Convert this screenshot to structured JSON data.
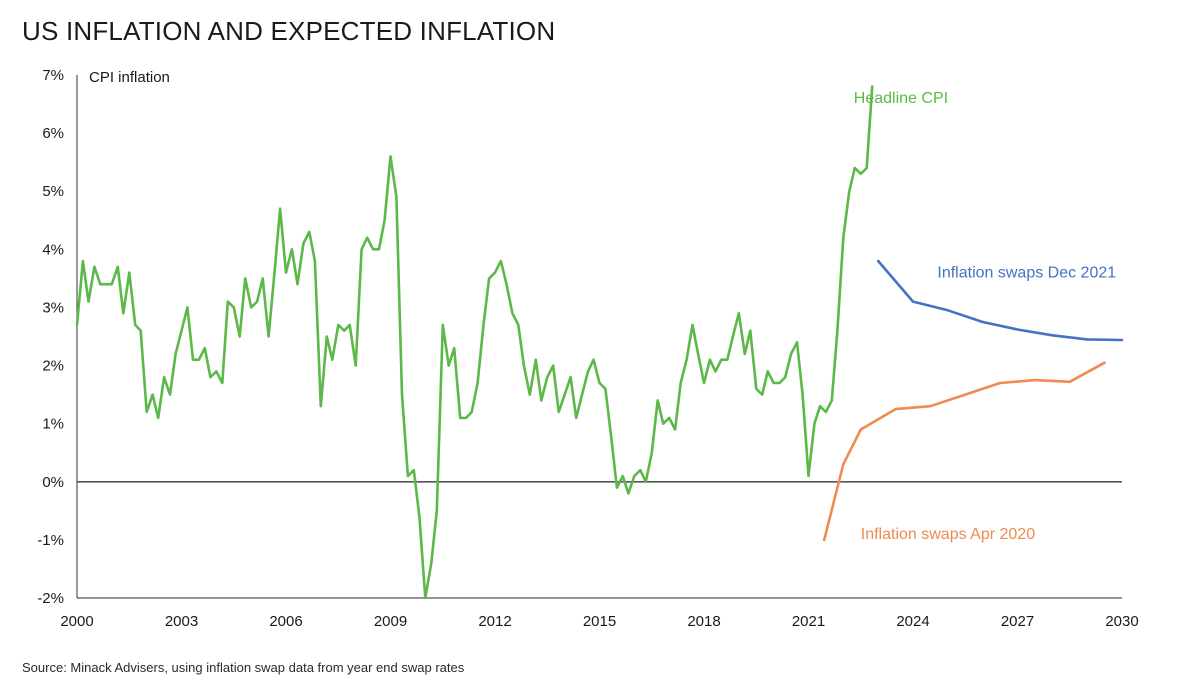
{
  "chart_data": {
    "type": "line",
    "title": "US INFLATION AND EXPECTED INFLATION",
    "ylabel": "CPI inflation",
    "xlabel": "",
    "source": "Source: Minack Advisers, using inflation swap data from year end swap rates",
    "xlim": [
      2000,
      2030
    ],
    "ylim": [
      -2,
      7
    ],
    "x_ticks": [
      2000,
      2003,
      2006,
      2009,
      2012,
      2015,
      2018,
      2021,
      2024,
      2027,
      2030
    ],
    "x_tick_labels": [
      "2000",
      "2003",
      "2006",
      "2009",
      "2012",
      "2015",
      "2018",
      "2021",
      "2024",
      "2027",
      "2030"
    ],
    "y_ticks": [
      -2,
      -1,
      0,
      1,
      2,
      3,
      4,
      5,
      6,
      7
    ],
    "y_tick_labels": [
      "-2%",
      "-1%",
      "0%",
      "1%",
      "2%",
      "3%",
      "4%",
      "5%",
      "6%",
      "7%"
    ],
    "grid": false,
    "zero_line": true,
    "series": [
      {
        "name": "Headline CPI",
        "color": "#5cb848",
        "label_at": [
          2022.3,
          6.6
        ],
        "points": [
          [
            2000.0,
            2.7
          ],
          [
            2000.17,
            3.8
          ],
          [
            2000.33,
            3.1
          ],
          [
            2000.5,
            3.7
          ],
          [
            2000.67,
            3.4
          ],
          [
            2000.83,
            3.4
          ],
          [
            2001.0,
            3.4
          ],
          [
            2001.17,
            3.7
          ],
          [
            2001.33,
            2.9
          ],
          [
            2001.5,
            3.6
          ],
          [
            2001.67,
            2.7
          ],
          [
            2001.83,
            2.6
          ],
          [
            2002.0,
            1.2
          ],
          [
            2002.17,
            1.5
          ],
          [
            2002.33,
            1.1
          ],
          [
            2002.5,
            1.8
          ],
          [
            2002.67,
            1.5
          ],
          [
            2002.83,
            2.2
          ],
          [
            2003.0,
            2.6
          ],
          [
            2003.17,
            3.0
          ],
          [
            2003.33,
            2.1
          ],
          [
            2003.5,
            2.1
          ],
          [
            2003.67,
            2.3
          ],
          [
            2003.83,
            1.8
          ],
          [
            2004.0,
            1.9
          ],
          [
            2004.17,
            1.7
          ],
          [
            2004.33,
            3.1
          ],
          [
            2004.5,
            3.0
          ],
          [
            2004.67,
            2.5
          ],
          [
            2004.83,
            3.5
          ],
          [
            2005.0,
            3.0
          ],
          [
            2005.17,
            3.1
          ],
          [
            2005.33,
            3.5
          ],
          [
            2005.5,
            2.5
          ],
          [
            2005.67,
            3.6
          ],
          [
            2005.83,
            4.7
          ],
          [
            2006.0,
            3.6
          ],
          [
            2006.17,
            4.0
          ],
          [
            2006.33,
            3.4
          ],
          [
            2006.5,
            4.1
          ],
          [
            2006.67,
            4.3
          ],
          [
            2006.83,
            3.8
          ],
          [
            2007.0,
            1.3
          ],
          [
            2007.17,
            2.5
          ],
          [
            2007.33,
            2.1
          ],
          [
            2007.5,
            2.7
          ],
          [
            2007.67,
            2.6
          ],
          [
            2007.83,
            2.7
          ],
          [
            2008.0,
            2.0
          ],
          [
            2008.17,
            4.0
          ],
          [
            2008.33,
            4.2
          ],
          [
            2008.5,
            4.0
          ],
          [
            2008.67,
            4.0
          ],
          [
            2008.83,
            4.5
          ],
          [
            2009.0,
            5.6
          ],
          [
            2009.17,
            4.9
          ],
          [
            2009.33,
            1.5
          ],
          [
            2009.5,
            0.1
          ],
          [
            2009.67,
            0.2
          ],
          [
            2009.83,
            -0.6
          ],
          [
            2010.0,
            -2.0
          ],
          [
            2010.17,
            -1.4
          ],
          [
            2010.33,
            -0.5
          ],
          [
            2010.5,
            2.7
          ],
          [
            2010.67,
            2.0
          ],
          [
            2010.83,
            2.3
          ],
          [
            2011.0,
            1.1
          ],
          [
            2011.17,
            1.1
          ],
          [
            2011.33,
            1.2
          ],
          [
            2011.5,
            1.7
          ],
          [
            2011.67,
            2.7
          ],
          [
            2011.83,
            3.5
          ],
          [
            2012.0,
            3.6
          ],
          [
            2012.17,
            3.8
          ],
          [
            2012.33,
            3.4
          ],
          [
            2012.5,
            2.9
          ],
          [
            2012.67,
            2.7
          ],
          [
            2012.83,
            2.0
          ],
          [
            2013.0,
            1.5
          ],
          [
            2013.17,
            2.1
          ],
          [
            2013.33,
            1.4
          ],
          [
            2013.5,
            1.8
          ],
          [
            2013.67,
            2.0
          ],
          [
            2013.83,
            1.2
          ],
          [
            2014.0,
            1.5
          ],
          [
            2014.17,
            1.8
          ],
          [
            2014.33,
            1.1
          ],
          [
            2014.5,
            1.5
          ],
          [
            2014.67,
            1.9
          ],
          [
            2014.83,
            2.1
          ],
          [
            2015.0,
            1.7
          ],
          [
            2015.17,
            1.6
          ],
          [
            2015.33,
            0.8
          ],
          [
            2015.5,
            -0.1
          ],
          [
            2015.67,
            0.1
          ],
          [
            2015.83,
            -0.2
          ],
          [
            2016.0,
            0.1
          ],
          [
            2016.17,
            0.2
          ],
          [
            2016.33,
            0.0
          ],
          [
            2016.5,
            0.5
          ],
          [
            2016.67,
            1.4
          ],
          [
            2016.83,
            1.0
          ],
          [
            2017.0,
            1.1
          ],
          [
            2017.17,
            0.9
          ],
          [
            2017.33,
            1.7
          ],
          [
            2017.5,
            2.1
          ],
          [
            2017.67,
            2.7
          ],
          [
            2017.83,
            2.2
          ],
          [
            2018.0,
            1.7
          ],
          [
            2018.17,
            2.1
          ],
          [
            2018.33,
            1.9
          ],
          [
            2018.5,
            2.1
          ],
          [
            2018.67,
            2.1
          ],
          [
            2018.83,
            2.5
          ],
          [
            2019.0,
            2.9
          ],
          [
            2019.17,
            2.2
          ],
          [
            2019.33,
            2.6
          ],
          [
            2019.5,
            1.6
          ],
          [
            2019.67,
            1.5
          ],
          [
            2019.83,
            1.9
          ],
          [
            2020.0,
            1.7
          ],
          [
            2020.17,
            1.7
          ],
          [
            2020.33,
            1.8
          ],
          [
            2020.5,
            2.2
          ],
          [
            2020.67,
            2.4
          ],
          [
            2020.83,
            1.5
          ],
          [
            2021.0,
            0.1
          ],
          [
            2021.17,
            1.0
          ],
          [
            2021.33,
            1.3
          ],
          [
            2021.5,
            1.2
          ],
          [
            2021.67,
            1.4
          ],
          [
            2021.83,
            2.6
          ],
          [
            2022.0,
            4.2
          ],
          [
            2022.17,
            5.0
          ],
          [
            2022.33,
            5.4
          ],
          [
            2022.5,
            5.3
          ],
          [
            2022.67,
            5.4
          ],
          [
            2022.83,
            6.8
          ]
        ]
      },
      {
        "name": "Inflation swaps Dec 2021",
        "color": "#4472c4",
        "label_at": [
          2024.7,
          3.6
        ],
        "points": [
          [
            2023.0,
            3.8
          ],
          [
            2024.0,
            3.1
          ],
          [
            2025.0,
            2.95
          ],
          [
            2026.0,
            2.75
          ],
          [
            2027.0,
            2.62
          ],
          [
            2028.0,
            2.52
          ],
          [
            2029.0,
            2.45
          ],
          [
            2030.0,
            2.44
          ]
        ]
      },
      {
        "name": "Inflation swaps Apr 2020",
        "color": "#f08a52",
        "label_at": [
          2022.5,
          -0.9
        ],
        "points": [
          [
            2021.45,
            -1.0
          ],
          [
            2022.0,
            0.3
          ],
          [
            2022.5,
            0.9
          ],
          [
            2023.5,
            1.25
          ],
          [
            2024.5,
            1.3
          ],
          [
            2025.5,
            1.5
          ],
          [
            2026.5,
            1.7
          ],
          [
            2027.5,
            1.75
          ],
          [
            2028.5,
            1.72
          ],
          [
            2029.5,
            2.05
          ]
        ]
      }
    ]
  }
}
